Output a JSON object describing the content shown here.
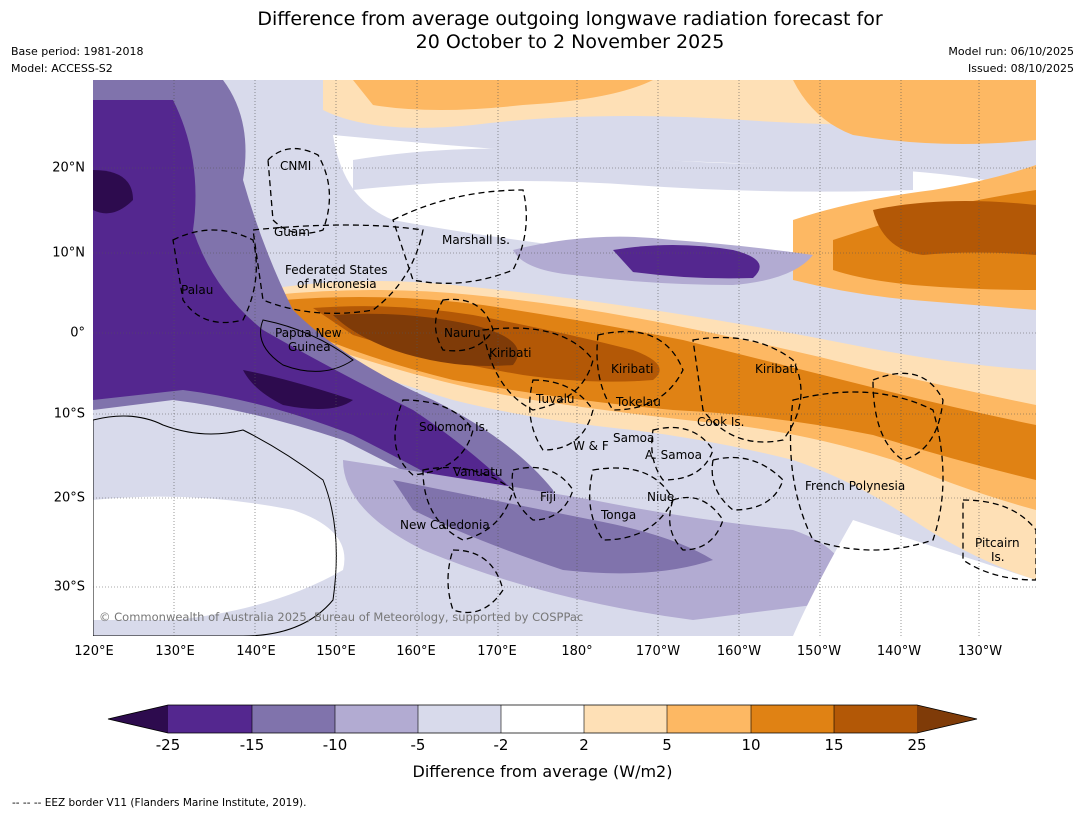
{
  "title": {
    "line1": "Difference from average outgoing longwave radiation forecast for",
    "line2": "20 October to 2 November 2025"
  },
  "meta": {
    "base_period": "Base period: 1981-2018",
    "model": "Model: ACCESS-S2",
    "model_run": "Model run: 06/10/2025",
    "issued": "Issued: 08/10/2025"
  },
  "axes": {
    "lat_ticks": [
      "20°N",
      "10°N",
      "0°",
      "10°S",
      "20°S",
      "30°S"
    ],
    "lon_ticks": [
      "120°E",
      "130°E",
      "140°E",
      "150°E",
      "160°E",
      "170°E",
      "180°",
      "170°W",
      "160°W",
      "150°W",
      "140°W",
      "130°W"
    ]
  },
  "regions": [
    "CNMI",
    "Guam",
    "Marshall Is.",
    "Federated States",
    "of Micronesia",
    "Palau",
    "Papua New",
    "Guinea",
    "Nauru",
    "Kiribati",
    "Kiribati",
    "Kiribati",
    "Tuvalu",
    "Tokelau",
    "Cook Is.",
    "Solomon Is.",
    "Samoa",
    "W & F",
    "A. Samoa",
    "Vanuatu",
    "Fiji",
    "Niue",
    "Tonga",
    "New Caledonia",
    "French Polynesia",
    "Pitcairn",
    "Is."
  ],
  "copyright": "© Commonwealth of Australia 2025, Bureau of Meteorology, supported by COSPPac",
  "colorbar": {
    "title": "Difference from average (W/m2)",
    "labels": [
      "-25",
      "-15",
      "-10",
      "-5",
      "-2",
      "2",
      "5",
      "10",
      "15",
      "25"
    ],
    "colors": {
      "under": "#2d0b4e",
      "c1": "#54278f",
      "c2": "#8073ac",
      "c3": "#b2abd2",
      "c4": "#d8daeb",
      "c5": "#ffffff",
      "c6": "#fee0b6",
      "c7": "#fdb863",
      "c8": "#e08214",
      "c9": "#b35806",
      "over": "#7f3b08"
    }
  },
  "footnote": "--  --  -- EEZ border V11 (Flanders Marine Institute, 2019)."
}
